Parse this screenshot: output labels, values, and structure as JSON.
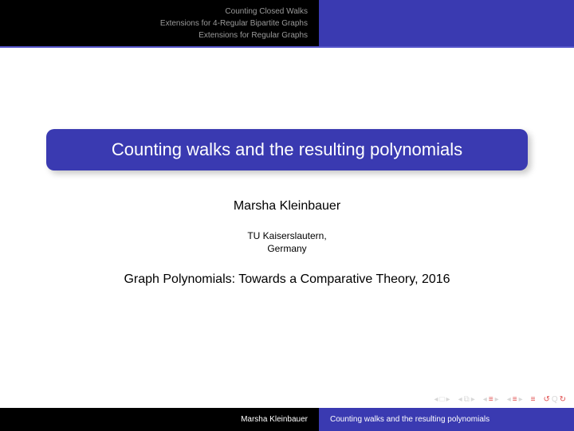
{
  "colors": {
    "beamer_blue": "#3a3ab1",
    "header_divider": "#5454c9",
    "black": "#000000",
    "white": "#ffffff",
    "header_text": "#9a9a9a",
    "nav_dim": "#d8d8d8",
    "nav_red": "#e05050"
  },
  "header": {
    "sections": [
      "Counting Closed Walks",
      "Extensions for 4-Regular Bipartite Graphs",
      "Extensions for Regular Graphs"
    ]
  },
  "title": {
    "text": "Counting walks and the resulting polynomials",
    "fontsize": 22,
    "bg": "#3a3ab1",
    "fg": "#ffffff",
    "border_radius": 10
  },
  "author": "Marsha Kleinbauer",
  "affiliation": {
    "line1": "TU Kaiserslautern,",
    "line2": "Germany"
  },
  "venue": "Graph Polynomials: Towards a Comparative Theory, 2016",
  "footer": {
    "author": "Marsha Kleinbauer",
    "title": "Counting walks and the resulting polynomials"
  },
  "nav": {
    "first": "◂",
    "prev": "◂",
    "frame_sym": "⧉",
    "next": "▸",
    "last": "▸",
    "lines_a": "≡",
    "lines_b": "≡",
    "undo": "↺",
    "redo": "↻"
  }
}
